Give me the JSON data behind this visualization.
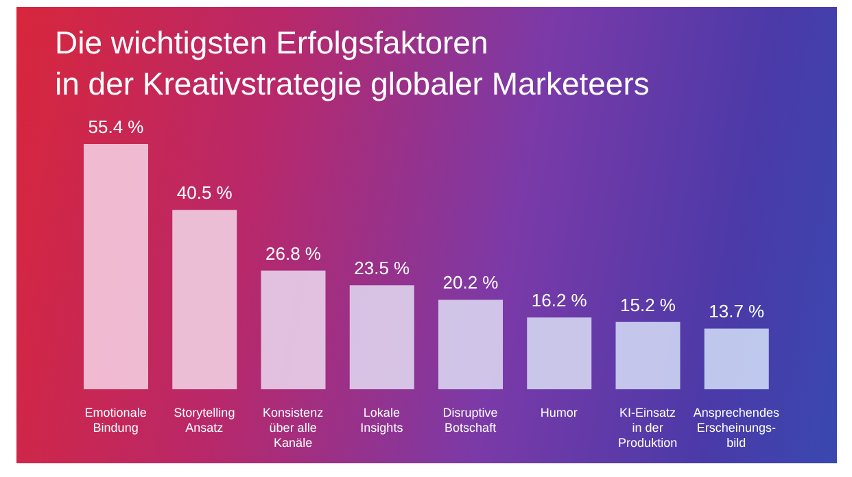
{
  "chart_data": {
    "type": "bar",
    "title": "Die wichtigsten Erfolgsfaktoren\nin der Kreativstrategie globaler Marketeers",
    "categories": [
      "Emotionale\nBindung",
      "Storytelling\nAnsatz",
      "Konsistenz\nüber alle\nKanäle",
      "Lokale\nInsights",
      "Disruptive\nBotschaft",
      "Humor",
      "KI-Einsatz\nin der\nProduktion",
      "Ansprechendes\nErscheinungs-\nbild"
    ],
    "values": [
      55.4,
      40.5,
      26.8,
      23.5,
      20.2,
      16.2,
      15.2,
      13.7
    ],
    "value_labels": [
      "55.4 %",
      "40.5 %",
      "26.8 %",
      "23.5 %",
      "20.2 %",
      "16.2 %",
      "15.2 %",
      "13.7 %"
    ],
    "colors": [
      "#f3c8dc",
      "#efcbe0",
      "#e6cde8",
      "#ddcfec",
      "#d7d0ee",
      "#d1d2f0",
      "#cdd3f2",
      "#cad4f3"
    ],
    "grid": false,
    "legend": false
  }
}
